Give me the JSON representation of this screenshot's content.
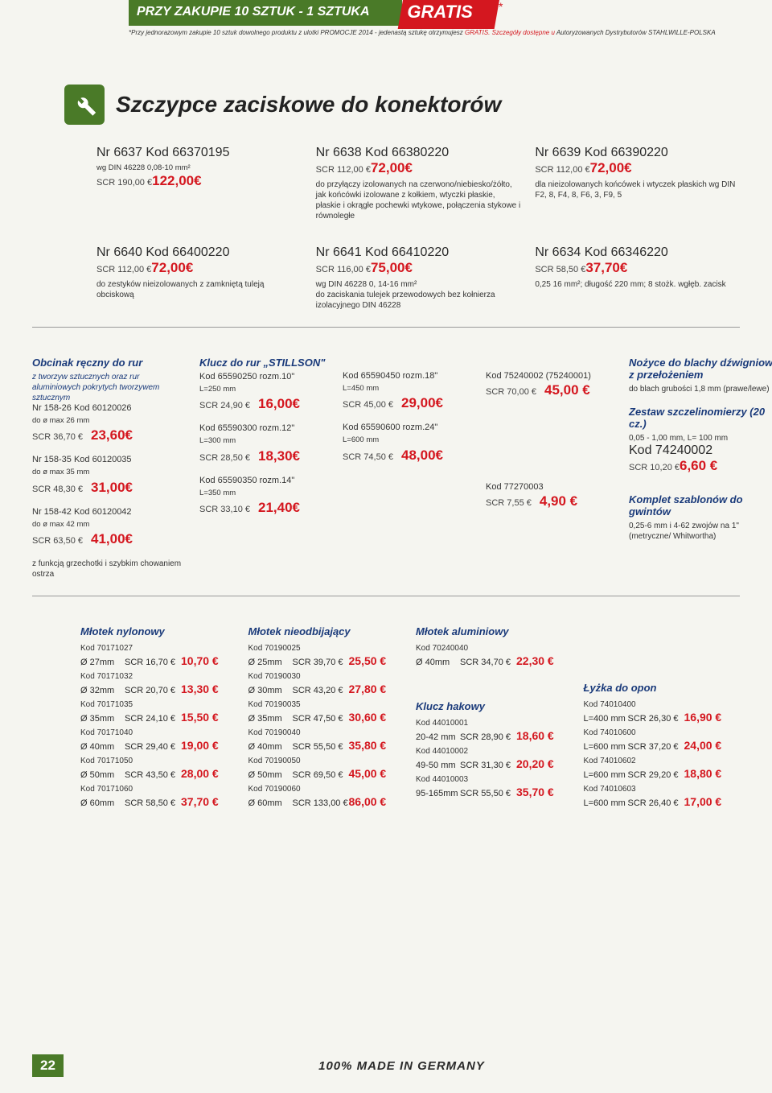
{
  "promo": {
    "green": "PRZY ZAKUPIE 10 SZTUK - 1 SZTUKA",
    "red": "GRATIS",
    "star": "*",
    "fine_prefix": "*Przy jednorazowym zakupie 10 sztuk dowolnego produktu z ulotki PROMOCJE 2014 - jedenastą sztukę otrzymujesz ",
    "fine_red": "GRATIS. Szczegóły dostępne u",
    "fine_suffix": " Autoryzowanych Dystrybutorów STAHLWILLE-POLSKA"
  },
  "header": {
    "title": "Szczypce zaciskowe do konektorów"
  },
  "topRow": [
    {
      "code": "Nr 6637  Kod 66370195",
      "sub": "wg DIN 46228 0,08-10 mm²",
      "scr": "SCR 190,00 €",
      "promo": "122,00€",
      "desc": ""
    },
    {
      "code": "Nr 6638  Kod 66380220",
      "sub": "",
      "scr": "SCR 112,00 €",
      "promo": "72,00€",
      "desc": "do przyłączy izolowanych na czerwono/niebiesko/żółto, jak końcówki izolowane z kołkiem, wtyczki płaskie, płaskie i okrągłe pochewki wtykowe, połączenia stykowe i równoległe"
    },
    {
      "code": "Nr 6639  Kod 66390220",
      "sub": "",
      "scr": "SCR 112,00 €",
      "promo": "72,00€",
      "desc": "dla nieizolowanych końcówek i wtyczek płaskich wg DIN  F2, 8, F4, 8, F6, 3, F9, 5"
    }
  ],
  "row2": [
    {
      "code": "Nr 6640  Kod 66400220",
      "scr": "SCR 112,00 €",
      "promo": "72,00€",
      "desc": "do zestyków nieizolowanych z zamkniętą tuleją obciskową"
    },
    {
      "code": "Nr 6641  Kod 66410220",
      "scr": "SCR 116,00 €",
      "promo": "75,00€",
      "desc": "wg DIN 46228 0, 14-16 mm²\ndo zaciskania tulejek przewodowych bez kołnierza izolacyjnego DIN 46228"
    },
    {
      "code": "Nr 6634  Kod 66346220",
      "scr": "SCR 58,50 €",
      "promo": "37,70€",
      "desc": "0,25 16 mm²; długość 220 mm; 8 stożk. wgłęb. zacisk"
    }
  ],
  "row3": {
    "obcinak": {
      "title": "Obcinak ręczny do rur",
      "sub": "z tworzyw sztucznych oraz rur aluminiowych pokrytych tworzywem sztucznym",
      "items": [
        {
          "code": "Nr 158-26  Kod 60120026",
          "size": "do ø max 26 mm",
          "scr": "SCR 36,70 €",
          "promo": "23,60€"
        },
        {
          "code": "Nr 158-35  Kod 60120035",
          "size": "do ø max 35 mm",
          "scr": "SCR 48,30 €",
          "promo": "31,00€"
        },
        {
          "code": "Nr 158-42  Kod 60120042",
          "size": "do ø max 42 mm",
          "scr": "SCR 63,50 €",
          "promo": "41,00€"
        }
      ],
      "note": "z funkcją grzechotki i  szybkim chowaniem ostrza"
    },
    "stillson": {
      "title": "Klucz do rur „STILLSON\"",
      "left": [
        {
          "code": "Kod 65590250  rozm.10\"",
          "size": "L=250 mm",
          "scr": "SCR 24,90 €",
          "promo": "16,00€"
        },
        {
          "code": "Kod 65590300  rozm.12\"",
          "size": "L=300 mm",
          "scr": "SCR 28,50 €",
          "promo": "18,30€"
        },
        {
          "code": "Kod 65590350  rozm.14\"",
          "size": "L=350 mm",
          "scr": "SCR 33,10 €",
          "promo": "21,40€"
        }
      ],
      "right": [
        {
          "code": "Kod 65590450  rozm.18\"",
          "size": "L=450 mm",
          "scr": "SCR 45,00 €",
          "promo": "29,00€"
        },
        {
          "code": "Kod 65590600  rozm.24\"",
          "size": "L=600 mm",
          "scr": "SCR 74,50 €",
          "promo": "48,00€"
        }
      ]
    },
    "mid": [
      {
        "code": "Kod 75240002 (75240001)",
        "scr": "SCR 70,00 €",
        "promo": "45,00 €"
      },
      {
        "code": "Kod 77270003",
        "scr": "SCR 7,55 €",
        "promo": "4,90 €"
      }
    ],
    "right": {
      "nozyce": {
        "title": "Nożyce do blachy dźwigniowe z przełożeniem",
        "desc": "do blach grubości 1,8 mm (prawe/lewe)"
      },
      "szczelin": {
        "title": "Zestaw szczelinomierzy (20 cz.)",
        "desc": "0,05 - 1,00 mm, L= 100 mm",
        "code": "Kod 74240002",
        "scr": "SCR 10,20 €",
        "promo": "6,60 €"
      },
      "szablon": {
        "title": "Komplet szablonów do gwintów",
        "desc": "0,25-6 mm i 4-62 zwojów na 1\" (metryczne/ Whitwortha)"
      }
    }
  },
  "hammers": {
    "nylon": {
      "title": "Młotek nylonowy",
      "items": [
        {
          "dia": "Ø 27mm",
          "kod": "Kod 70171027",
          "scr": "SCR 16,70 €",
          "promo": "10,70 €"
        },
        {
          "dia": "Ø 32mm",
          "kod": "Kod 70171032",
          "scr": "SCR 20,70 €",
          "promo": "13,30 €"
        },
        {
          "dia": "Ø 35mm",
          "kod": "Kod 70171035",
          "scr": "SCR 24,10 €",
          "promo": "15,50 €"
        },
        {
          "dia": "Ø 40mm",
          "kod": "Kod 70171040",
          "scr": "SCR 29,40 €",
          "promo": "19,00 €"
        },
        {
          "dia": "Ø  50mm",
          "kod": "Kod 70171050",
          "scr": "SCR 43,50 €",
          "promo": "28,00 €"
        },
        {
          "dia": "Ø  60mm",
          "kod": "Kod 70171060",
          "scr": "SCR 58,50 €",
          "promo": "37,70 €"
        }
      ]
    },
    "nieodb": {
      "title": "Młotek nieodbijający",
      "items": [
        {
          "dia": "Ø 25mm",
          "kod": "Kod 70190025",
          "scr": "SCR 39,70 €",
          "promo": "25,50 €"
        },
        {
          "dia": "Ø 30mm",
          "kod": "Kod 70190030",
          "scr": "SCR 43,20 €",
          "promo": "27,80 €"
        },
        {
          "dia": "Ø 35mm",
          "kod": "Kod 70190035",
          "scr": "SCR 47,50 €",
          "promo": "30,60 €"
        },
        {
          "dia": "Ø 40mm",
          "kod": "Kod 70190040",
          "scr": "SCR 55,50 €",
          "promo": "35,80 €"
        },
        {
          "dia": "Ø  50mm",
          "kod": "Kod 70190050",
          "scr": "SCR 69,50 €",
          "promo": "45,00 €"
        },
        {
          "dia": "Ø  60mm",
          "kod": "Kod 70190060",
          "scr": "SCR 133,00 €",
          "promo": "86,00 €"
        }
      ]
    },
    "alum": {
      "title": "Młotek aluminiowy",
      "items": [
        {
          "dia": "Ø 40mm",
          "kod": "Kod 70240040",
          "scr": "SCR 34,70 €",
          "promo": "22,30 €"
        }
      ]
    },
    "hak": {
      "title": "Klucz hakowy",
      "items": [
        {
          "dia": "20-42 mm",
          "kod": "Kod 44010001",
          "scr": "SCR 28,90 €",
          "promo": "18,60 €"
        },
        {
          "dia": "49-50 mm",
          "kod": "Kod 44010002",
          "scr": "SCR 31,30 €",
          "promo": "20,20 €"
        },
        {
          "dia": "95-165mm",
          "kod": "Kod 44010003",
          "scr": "SCR 55,50 €",
          "promo": "35,70 €"
        }
      ]
    },
    "opon": {
      "title": "Łyżka do opon",
      "items": [
        {
          "dia": "L=400 mm",
          "kod": "Kod 74010400",
          "scr": "SCR 26,30 €",
          "promo": "16,90 €"
        },
        {
          "dia": "L=600 mm",
          "kod": "Kod 74010600",
          "scr": "SCR 37,20 €",
          "promo": "24,00 €"
        },
        {
          "dia": "L=600 mm",
          "kod": "Kod 74010602",
          "scr": "SCR 29,20 €",
          "promo": "18,80 €"
        },
        {
          "dia": "L=600 mm",
          "kod": "Kod 74010603",
          "scr": "SCR 26,40 €",
          "promo": "17,00 €"
        }
      ]
    }
  },
  "footer": {
    "page": "22",
    "made": "100% MADE IN GERMANY"
  }
}
